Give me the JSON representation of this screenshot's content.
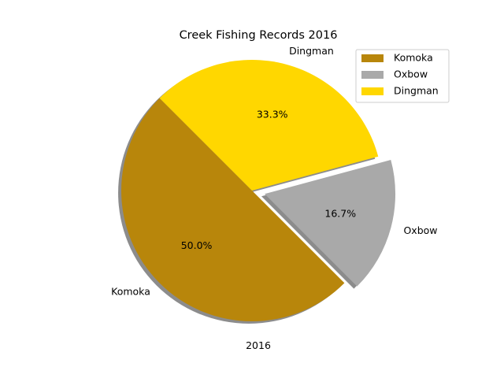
{
  "chart_data": {
    "type": "pie",
    "title": "Creek Fishing Records 2016",
    "xlabel": "2016",
    "slices": [
      {
        "label": "Komoka",
        "value": 50.0,
        "pct_label": "50.0%",
        "color": "#b8860b",
        "explode": false
      },
      {
        "label": "Oxbow",
        "value": 16.7,
        "pct_label": "16.7%",
        "color": "#a9a9a9",
        "explode": true
      },
      {
        "label": "Dingman",
        "value": 33.3,
        "pct_label": "33.3%",
        "color": "#ffd700",
        "explode": false
      }
    ],
    "start_angle_deg": 135,
    "shadow": true,
    "legend": {
      "placement": "top-right",
      "entries": [
        "Komoka",
        "Oxbow",
        "Dingman"
      ]
    }
  }
}
